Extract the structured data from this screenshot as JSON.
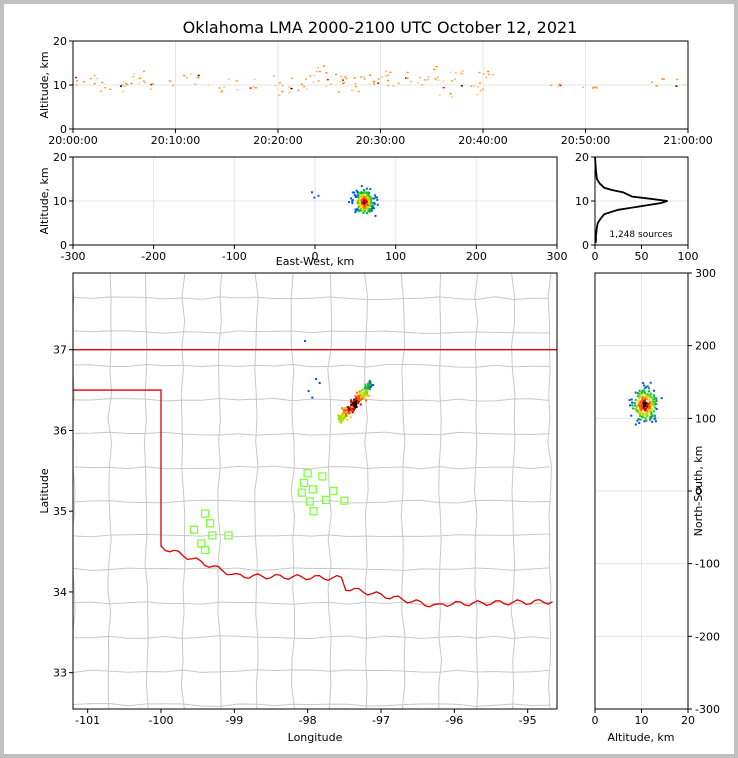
{
  "title": "Oklahoma LMA 2000-2100 UTC October 12, 2021",
  "colors": {
    "outline": "#dd0000",
    "counties": "#c8c8c8",
    "stations": "#80ff40",
    "grid": "#e6e6e6"
  },
  "chart_data": [
    {
      "id": "time_altitude",
      "type": "scatter",
      "ylabel": "Altitude, km",
      "xlabel": "",
      "xticks": [
        "20:00:00",
        "20:10:00",
        "20:20:00",
        "20:30:00",
        "20:40:00",
        "20:50:00",
        "21:00:00"
      ],
      "xlim_min": [
        0,
        60
      ],
      "ylim": [
        0,
        20
      ],
      "yticks": [
        0,
        10,
        20
      ],
      "description_points": [
        {
          "t": 0.5,
          "alt": 10.5
        },
        {
          "t": 1.5,
          "alt": 11.8
        },
        {
          "t": 3.2,
          "alt": 9.8
        },
        {
          "t": 4.6,
          "alt": 9.1
        },
        {
          "t": 5.5,
          "alt": 11.0
        },
        {
          "t": 6.5,
          "alt": 12.6
        },
        {
          "t": 7.2,
          "alt": 10.3
        },
        {
          "t": 9.5,
          "alt": 10.6
        },
        {
          "t": 10.8,
          "alt": 11.4
        },
        {
          "t": 12.5,
          "alt": 10.9
        },
        {
          "t": 14.2,
          "alt": 9.3
        },
        {
          "t": 15.6,
          "alt": 10.8
        },
        {
          "t": 17.5,
          "alt": 9.6
        },
        {
          "t": 19.3,
          "alt": 10.9
        },
        {
          "t": 20.7,
          "alt": 9.5
        },
        {
          "t": 22.0,
          "alt": 10.2
        },
        {
          "t": 23.2,
          "alt": 11.3
        },
        {
          "t": 24.1,
          "alt": 13.5
        },
        {
          "t": 24.6,
          "alt": 11.8
        },
        {
          "t": 25.3,
          "alt": 9.9
        },
        {
          "t": 26.0,
          "alt": 12.0
        },
        {
          "t": 26.8,
          "alt": 10.8
        },
        {
          "t": 27.5,
          "alt": 8.6
        },
        {
          "t": 28.6,
          "alt": 10.6
        },
        {
          "t": 29.5,
          "alt": 11.3
        },
        {
          "t": 30.4,
          "alt": 11.6
        },
        {
          "t": 31.2,
          "alt": 10.9
        },
        {
          "t": 32.4,
          "alt": 12.2
        },
        {
          "t": 33.6,
          "alt": 11.1
        },
        {
          "t": 35.0,
          "alt": 13.0
        },
        {
          "t": 35.4,
          "alt": 11.4
        },
        {
          "t": 36.2,
          "alt": 8.2
        },
        {
          "t": 37.5,
          "alt": 12.5
        },
        {
          "t": 38.2,
          "alt": 10.4
        },
        {
          "t": 39.5,
          "alt": 9.0
        },
        {
          "t": 40.2,
          "alt": 12.8
        },
        {
          "t": 46.8,
          "alt": 10.2
        },
        {
          "t": 50.3,
          "alt": 9.6
        },
        {
          "t": 56.8,
          "alt": 11.8
        },
        {
          "t": 59.2,
          "alt": 9.7
        }
      ]
    },
    {
      "id": "ew_altitude",
      "type": "scatter",
      "xlabel": "East-West, km",
      "ylabel": "Altitude, km",
      "xlim": [
        -300,
        300
      ],
      "ylim": [
        0,
        20
      ],
      "xticks": [
        -300,
        -200,
        -100,
        0,
        100,
        200,
        300
      ],
      "yticks": [
        0,
        10,
        20
      ],
      "cluster": {
        "x_center": 60,
        "x_spread": 12,
        "alt_center": 10,
        "alt_spread": 2.5
      },
      "outliers": [
        {
          "x": -5,
          "alt": 12.2
        },
        {
          "x": 3,
          "alt": 11.4
        },
        {
          "x": -2,
          "alt": 11.0
        }
      ]
    },
    {
      "id": "altitude_histogram",
      "type": "line",
      "xlim": [
        0,
        100
      ],
      "ylim": [
        0,
        20
      ],
      "xticks": [
        0,
        50,
        100
      ],
      "yticks": [
        0,
        10,
        20
      ],
      "annotation": "1,248 sources",
      "profile": [
        {
          "alt": 0.5,
          "count": 1
        },
        {
          "alt": 2,
          "count": 1
        },
        {
          "alt": 4,
          "count": 2
        },
        {
          "alt": 5,
          "count": 3
        },
        {
          "alt": 6,
          "count": 6
        },
        {
          "alt": 7,
          "count": 10
        },
        {
          "alt": 8,
          "count": 25
        },
        {
          "alt": 9,
          "count": 55
        },
        {
          "alt": 9.5,
          "count": 70
        },
        {
          "alt": 10,
          "count": 78
        },
        {
          "alt": 10.5,
          "count": 60
        },
        {
          "alt": 11,
          "count": 40
        },
        {
          "alt": 11.5,
          "count": 35
        },
        {
          "alt": 12,
          "count": 30
        },
        {
          "alt": 12.5,
          "count": 18
        },
        {
          "alt": 13,
          "count": 10
        },
        {
          "alt": 14,
          "count": 5
        },
        {
          "alt": 15,
          "count": 2
        },
        {
          "alt": 17,
          "count": 1
        },
        {
          "alt": 20,
          "count": 0
        }
      ]
    },
    {
      "id": "plan_view",
      "type": "scatter",
      "xlabel": "Longitude",
      "ylabel": "Latitude",
      "xlim": [
        -101.2,
        -94.6
      ],
      "ylim": [
        32.55,
        37.95
      ],
      "xticks": [
        -101,
        -100,
        -99,
        -98,
        -97,
        -96,
        -95
      ],
      "yticks": [
        33,
        34,
        35,
        36,
        37
      ],
      "cluster_line": {
        "lon_start": -97.55,
        "lat_start": 36.15,
        "lon_end": -97.15,
        "lat_end": 36.6
      },
      "outliers": [
        {
          "lon": -98.05,
          "lat": 37.12
        },
        {
          "lon": -97.9,
          "lat": 36.65
        },
        {
          "lon": -97.85,
          "lat": 36.6
        },
        {
          "lon": -98.0,
          "lat": 36.5
        },
        {
          "lon": -97.95,
          "lat": 36.42
        }
      ],
      "stations": [
        {
          "lon": -98.0,
          "lat": 35.47
        },
        {
          "lon": -97.8,
          "lat": 35.43
        },
        {
          "lon": -98.05,
          "lat": 35.35
        },
        {
          "lon": -97.93,
          "lat": 35.27
        },
        {
          "lon": -98.08,
          "lat": 35.23
        },
        {
          "lon": -97.65,
          "lat": 35.25
        },
        {
          "lon": -97.97,
          "lat": 35.12
        },
        {
          "lon": -97.75,
          "lat": 35.14
        },
        {
          "lon": -97.5,
          "lat": 35.13
        },
        {
          "lon": -97.92,
          "lat": 35.0
        },
        {
          "lon": -99.4,
          "lat": 34.97
        },
        {
          "lon": -99.33,
          "lat": 34.85
        },
        {
          "lon": -99.55,
          "lat": 34.77
        },
        {
          "lon": -99.3,
          "lat": 34.7
        },
        {
          "lon": -99.08,
          "lat": 34.7
        },
        {
          "lon": -99.45,
          "lat": 34.6
        },
        {
          "lon": -99.4,
          "lat": 34.52
        }
      ]
    },
    {
      "id": "altitude_ns",
      "type": "scatter",
      "xlabel": "Altitude, km",
      "ylabel": "North-South, km",
      "xlim": [
        0,
        20
      ],
      "ylim": [
        -300,
        300
      ],
      "xticks": [
        0,
        10,
        20
      ],
      "yticks": [
        -300,
        -200,
        -100,
        0,
        100,
        200,
        300
      ],
      "cluster": {
        "alt_center": 10.5,
        "alt_spread": 2.5,
        "ns_center": 120,
        "ns_spread": 22
      }
    }
  ]
}
